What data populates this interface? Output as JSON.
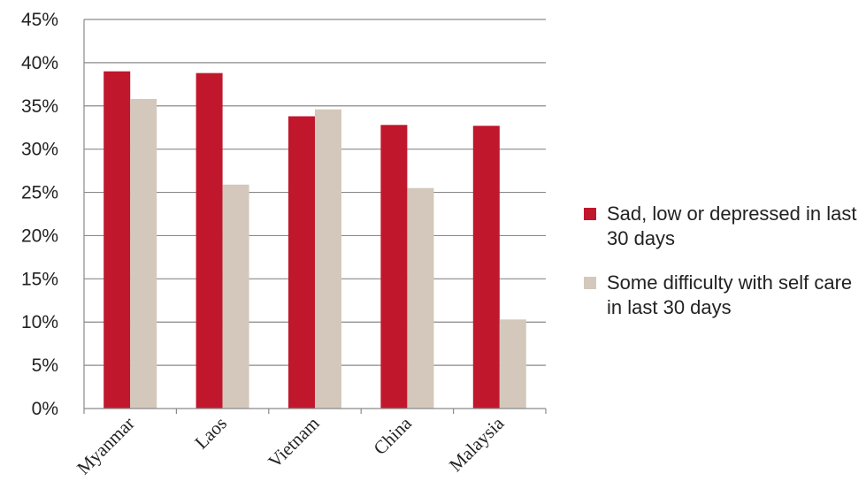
{
  "chart_data": {
    "type": "bar",
    "categories": [
      "Myanmar",
      "Laos",
      "Vietnam",
      "China",
      "Malaysia"
    ],
    "series": [
      {
        "name": "Sad, low or depressed in last 30 days",
        "color": "#c0172d",
        "values": [
          39.0,
          38.8,
          33.8,
          32.8,
          32.7
        ]
      },
      {
        "name": "Some difficulty with self care in last 30 days",
        "color": "#d3c8bb",
        "values": [
          35.8,
          25.9,
          34.6,
          25.5,
          10.3
        ]
      }
    ],
    "yticks": [
      "0%",
      "5%",
      "10%",
      "15%",
      "20%",
      "25%",
      "30%",
      "35%",
      "40%",
      "45%"
    ],
    "ylim": [
      0,
      45
    ],
    "ytick_step": 5,
    "grid": true,
    "legend_position": "right",
    "title": "",
    "xlabel": "",
    "ylabel": ""
  }
}
